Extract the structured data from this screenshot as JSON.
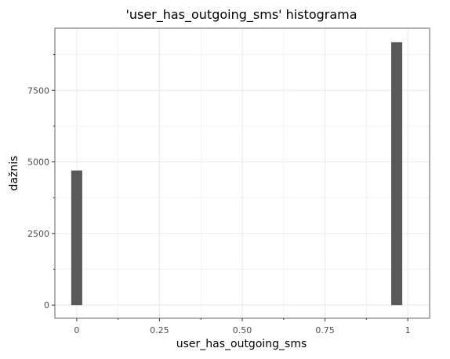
{
  "chart_data": {
    "type": "bar",
    "title": "'user_has_outgoing_sms' histograma",
    "xlabel": "user_has_outgoing_sms",
    "ylabel": "dažnis",
    "xlim": [
      -0.066,
      1.066
    ],
    "ylim": [
      -460,
      9670
    ],
    "x_ticks": [
      {
        "value": 0,
        "label": "0"
      },
      {
        "value": 0.25,
        "label": "0.25"
      },
      {
        "value": 0.5,
        "label": "0.50"
      },
      {
        "value": 0.75,
        "label": "0.75"
      },
      {
        "value": 1,
        "label": "1"
      }
    ],
    "y_ticks": [
      {
        "value": 0,
        "label": "0"
      },
      {
        "value": 2500,
        "label": "2500"
      },
      {
        "value": 5000,
        "label": "5000"
      },
      {
        "value": 7500,
        "label": "7500"
      }
    ],
    "x_minor": [
      0.125,
      0.375,
      0.625,
      0.875
    ],
    "y_minor": [
      1250,
      3750,
      6250,
      8750
    ],
    "bin_width": 0.0333,
    "bins": [
      {
        "x": 0,
        "count": 4700
      },
      {
        "x": 0.9667,
        "count": 9180
      }
    ],
    "grid": true,
    "colors": {
      "bar": "#595959",
      "grid": "#ebebeb",
      "panel_border": "#7f7f7f",
      "tick_text": "#4d4d4d",
      "text": "#000000"
    }
  }
}
